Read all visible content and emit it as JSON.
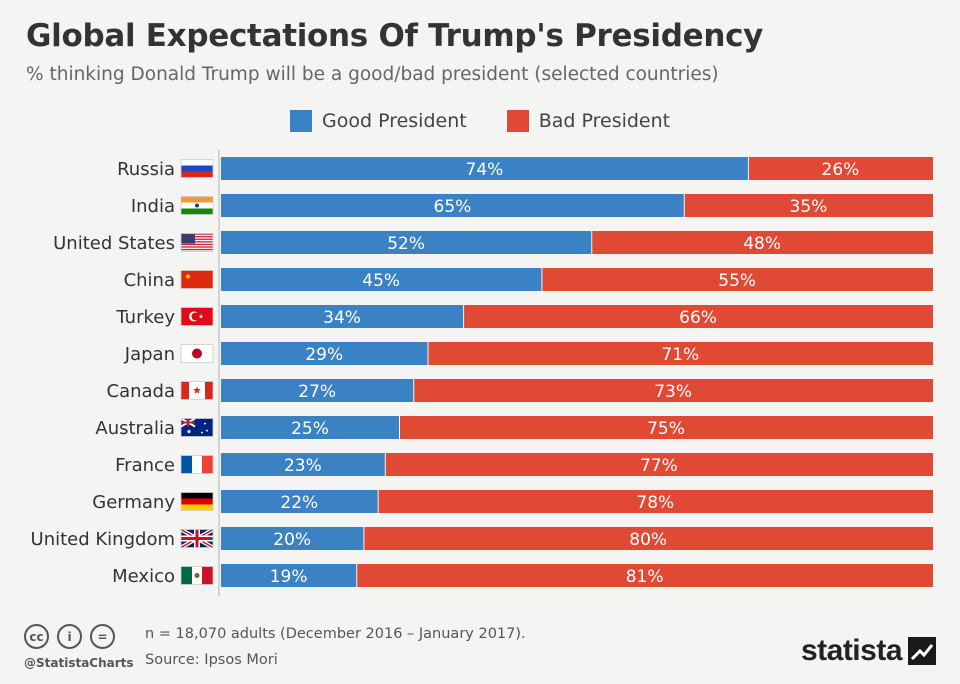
{
  "title": "Global Expectations Of Trump's Presidency",
  "subtitle": "% thinking Donald Trump will be a good/bad president (selected countries)",
  "legend": {
    "good_label": "Good President",
    "bad_label": "Bad President"
  },
  "colors": {
    "good": "#3b82c4",
    "bad": "#e04a35",
    "background": "#f4f4f2"
  },
  "chart_data": {
    "type": "bar",
    "orientation": "horizontal-stacked",
    "categories": [
      "Russia",
      "India",
      "United States",
      "China",
      "Turkey",
      "Japan",
      "Canada",
      "Australia",
      "France",
      "Germany",
      "United Kingdom",
      "Mexico"
    ],
    "series": [
      {
        "name": "Good President",
        "values": [
          74,
          65,
          52,
          45,
          34,
          29,
          27,
          25,
          23,
          22,
          20,
          19
        ]
      },
      {
        "name": "Bad President",
        "values": [
          26,
          35,
          48,
          55,
          66,
          71,
          73,
          75,
          77,
          78,
          80,
          81
        ]
      }
    ],
    "value_format": "%",
    "xlim": [
      0,
      100
    ],
    "legend_position": "top"
  },
  "flags": [
    "russia-flag-icon",
    "india-flag-icon",
    "usa-flag-icon",
    "china-flag-icon",
    "turkey-flag-icon",
    "japan-flag-icon",
    "canada-flag-icon",
    "australia-flag-icon",
    "france-flag-icon",
    "germany-flag-icon",
    "uk-flag-icon",
    "mexico-flag-icon"
  ],
  "footer": {
    "note": "n = 18,070 adults (December 2016 – January 2017).",
    "source": "Source: Ipsos Mori",
    "handle": "@StatistaCharts",
    "brand": "statista",
    "cc_icons": [
      "cc",
      "i",
      "="
    ]
  }
}
